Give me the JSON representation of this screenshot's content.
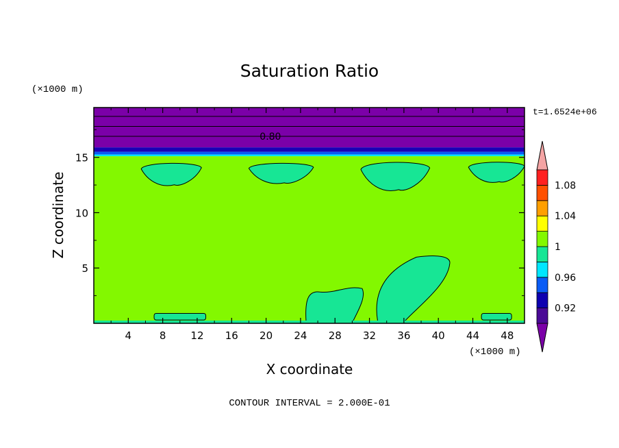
{
  "chart_data": {
    "type": "heatmap",
    "title": "Saturation Ratio",
    "xlabel": "X coordinate",
    "ylabel": "Z coordinate",
    "x_unit": "(×1000 m)",
    "y_unit": "(×1000 m)",
    "time_label": "t=1.6524e+06",
    "contour_interval_label": "CONTOUR INTERVAL = 2.000E-01",
    "contour_label": "0.80",
    "xlim": [
      0,
      50
    ],
    "ylim": [
      0,
      19.5
    ],
    "x_ticks": [
      "4",
      "8",
      "12",
      "16",
      "20",
      "24",
      "28",
      "32",
      "36",
      "40",
      "44",
      "48"
    ],
    "y_ticks": [
      "5",
      "10",
      "15"
    ],
    "colorbar": {
      "levels": [
        {
          "color": "#7b00a8"
        },
        {
          "color": "#4a0a96"
        },
        {
          "color": "#0e00b0"
        },
        {
          "color": "#0a5cf5"
        },
        {
          "color": "#00e6ff"
        },
        {
          "color": "#17e695"
        },
        {
          "color": "#83f800"
        },
        {
          "color": "#ffff00"
        },
        {
          "color": "#ff9f00"
        },
        {
          "color": "#ff5000"
        },
        {
          "color": "#ff2020"
        },
        {
          "color": "#f4a4a4"
        }
      ],
      "tick_labels": [
        "0.92",
        "0.96",
        "1",
        "1.04",
        "1.08"
      ]
    },
    "bands": [
      {
        "z0": 15.9,
        "z1": 19.5,
        "value": "<0.92",
        "color": "#7b00a8"
      },
      {
        "z0": 15.5,
        "z1": 15.9,
        "value": "0.92-0.96",
        "color": "#1a00b4"
      },
      {
        "z0": 15.25,
        "z1": 15.5,
        "value": "0.96-0.98",
        "color": "#0a5cf5"
      },
      {
        "z0": 15.1,
        "z1": 15.25,
        "value": "0.98-1",
        "color": "#00e6ff"
      },
      {
        "z0": 0,
        "z1": 15.1,
        "value": "1-1.02",
        "color": "#83f800"
      }
    ],
    "patches": [
      {
        "x0": 5.5,
        "x1": 12.5,
        "z0": 12.3,
        "z1": 14.5,
        "value": "0.98-1",
        "color": "#17e695"
      },
      {
        "x0": 18,
        "x1": 25.5,
        "z0": 12.5,
        "z1": 14.5,
        "value": "0.98-1",
        "color": "#17e695"
      },
      {
        "x0": 31,
        "x1": 39,
        "z0": 11.8,
        "z1": 14.6,
        "value": "0.98-1",
        "color": "#17e695"
      },
      {
        "x0": 43.5,
        "x1": 50,
        "z0": 12.6,
        "z1": 14.6,
        "value": "0.98-1",
        "color": "#17e695"
      },
      {
        "x0": 24.5,
        "x1": 31.5,
        "z0": 0.2,
        "z1": 3.3,
        "value": "0.98-1",
        "color": "#17e695"
      },
      {
        "x0": 32.5,
        "x1": 41.5,
        "z0": 0.2,
        "z1": 6.1,
        "value": "0.98-1",
        "color": "#17e695"
      }
    ]
  }
}
